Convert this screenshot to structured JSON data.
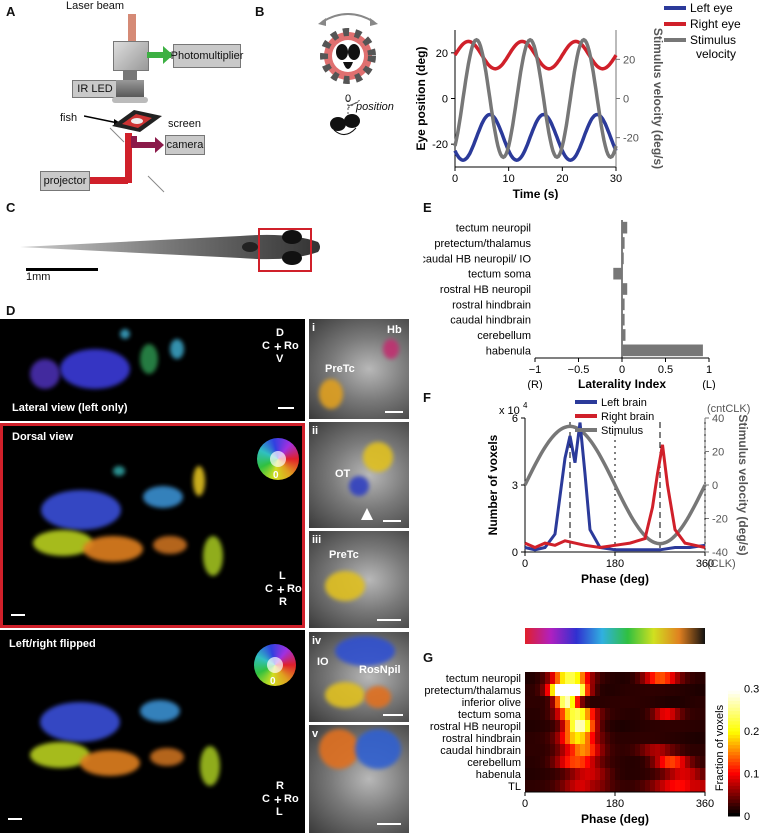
{
  "panel_labels": {
    "a": "A",
    "b": "B",
    "c": "C",
    "d": "D",
    "e": "E",
    "f": "F",
    "g": "G"
  },
  "panel_a": {
    "laser_beam": "Laser beam",
    "photomultiplier": "Photomultiplier",
    "ir_led": "IR LED",
    "fish": "fish",
    "screen": "screen",
    "camera": "camera",
    "projector": "projector",
    "colors": {
      "laser": "#d58a76",
      "ir": "#8b1a4a",
      "green": "#3cb043",
      "red": "#d0202a"
    }
  },
  "panel_b": {
    "position_label": "position",
    "zero_label": "0",
    "chart_data": {
      "type": "line",
      "xlabel": "Time (s)",
      "ylabel": "Eye position (deg)",
      "y2label": "Stimulus velocity (deg/s)",
      "xlim": [
        0,
        30
      ],
      "ylim": [
        -30,
        30
      ],
      "y2lim": [
        -35,
        35
      ],
      "xticks": [
        0,
        10,
        20,
        30
      ],
      "yticks": [
        -20,
        0,
        20
      ],
      "y2ticks": [
        -20,
        0,
        20
      ],
      "legend": [
        "Left eye",
        "Right eye",
        "Stimulus velocity"
      ],
      "period": 10,
      "series": [
        {
          "name": "Left eye",
          "color": "#2b3a9a",
          "mean": -17,
          "amp": 10,
          "phase_peak": 6.5
        },
        {
          "name": "Right eye",
          "color": "#d0202a",
          "mean": 19,
          "amp": 6,
          "phase_peak": 2.5
        },
        {
          "name": "Stimulus velocity",
          "color": "#777777",
          "mean": 0,
          "amp": 30,
          "phase_peak": 4.0
        }
      ]
    }
  },
  "panel_c": {
    "scalebar": "1mm"
  },
  "panel_d": {
    "lateral": "Lateral view (left only)",
    "dorsal": "Dorsal view",
    "flipped": "Left/right flipped",
    "axes1": {
      "d": "D",
      "c": "C",
      "ro": "Ro",
      "v": "V"
    },
    "axes2": {
      "l": "L",
      "c": "C",
      "ro": "Ro",
      "r": "R"
    },
    "axes3": {
      "r": "R",
      "c": "C",
      "ro": "Ro",
      "l": "L"
    },
    "wheel_zero": "0",
    "insets": [
      {
        "num": "i",
        "labels": [
          "Hb",
          "PreTc"
        ]
      },
      {
        "num": "ii",
        "labels": [
          "OT"
        ]
      },
      {
        "num": "iii",
        "labels": [
          "PreTc"
        ]
      },
      {
        "num": "iv",
        "labels": [
          "IO",
          "RosNpil"
        ]
      },
      {
        "num": "v",
        "labels": []
      }
    ]
  },
  "panel_e": {
    "chart_data": {
      "type": "bar",
      "orientation": "horizontal",
      "categories": [
        "tectum neuropil",
        "pretectum/thalamus",
        "caudal HB neuropil/ IO",
        "tectum soma",
        "rostral HB neuropil",
        "rostral hindbrain",
        "caudal hindbrain",
        "cerebellum",
        "habenula"
      ],
      "values": [
        0.06,
        0.03,
        0.02,
        -0.1,
        0.06,
        0.03,
        0.03,
        0.04,
        0.93
      ],
      "xlabel": "Laterality Index",
      "xlim": [
        -1,
        1
      ],
      "xticks": [
        "−1",
        "−0.5",
        "0",
        "0.5",
        "1"
      ],
      "end_labels": [
        "(R)",
        "(L)"
      ]
    }
  },
  "panel_f": {
    "chart_data": {
      "type": "line",
      "xlabel": "Phase (deg)",
      "ylabel": "Number of voxels",
      "y2label": "Stimulus velocity (deg/s)",
      "y_multiplier": "x 10",
      "y_multiplier_exp": "4",
      "xlim": [
        0,
        360
      ],
      "ylim": [
        0,
        6
      ],
      "y2lim": [
        -40,
        40
      ],
      "xticks": [
        0,
        180,
        360
      ],
      "yticks": [
        0,
        3,
        6
      ],
      "y2ticks": [
        -40,
        -20,
        0,
        20,
        40
      ],
      "cnt_clk": "(cntCLK)",
      "clk": "(CLK)",
      "legend": [
        "Left brain",
        "Right brain",
        "Stimulus"
      ],
      "series": [
        {
          "name": "Left brain",
          "color": "#2b3a9a",
          "x": [
            0,
            20,
            40,
            60,
            80,
            90,
            100,
            110,
            120,
            130,
            150,
            180,
            210,
            240,
            270,
            300,
            330,
            360
          ],
          "y": [
            0.2,
            0.1,
            0.2,
            0.8,
            4.2,
            5.2,
            4.0,
            5.8,
            3.5,
            1.0,
            0.2,
            0.1,
            0.1,
            0.1,
            0.1,
            0.2,
            0.2,
            0.3
          ]
        },
        {
          "name": "Right brain",
          "color": "#d0202a",
          "x": [
            0,
            20,
            40,
            60,
            80,
            100,
            120,
            150,
            180,
            210,
            240,
            255,
            265,
            275,
            285,
            300,
            320,
            340,
            360
          ],
          "y": [
            0.4,
            0.2,
            0.4,
            0.3,
            0.5,
            0.4,
            0.3,
            0.2,
            0.3,
            0.4,
            0.6,
            2.0,
            3.5,
            4.8,
            3.0,
            1.0,
            0.4,
            0.3,
            0.2
          ]
        },
        {
          "name": "Stimulus",
          "color": "#777777",
          "amp": 35,
          "peak_phase": 90
        }
      ]
    }
  },
  "panel_g": {
    "chart_data": {
      "type": "heatmap",
      "rows": [
        "tectum neuropil",
        "pretectum/thalamus",
        "inferior olive",
        "tectum soma",
        "rostral HB neuropil",
        "rostral hindbrain",
        "caudal hindbrain",
        "cerebellum",
        "habenula",
        "TL"
      ],
      "xlabel": "Phase (deg)",
      "xticks": [
        0,
        180,
        360
      ],
      "colorbar_label": "Fraction of voxels",
      "colorbar_ticks": [
        0,
        0.1,
        0.2,
        0.3
      ]
    }
  }
}
